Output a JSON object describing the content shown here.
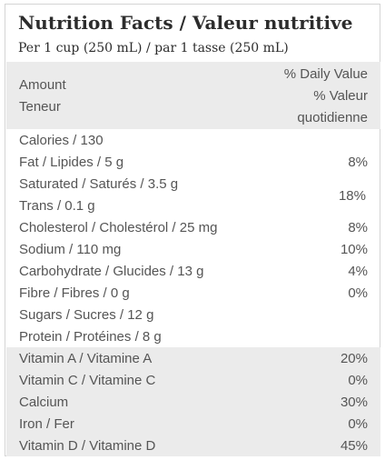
{
  "title": "Nutrition Facts / Valeur nutritive",
  "serving": "Per 1 cup (250 mL) / par 1 tasse (250 mL)",
  "header": {
    "amount": "Amount",
    "teneur": "Teneur",
    "dv_line1": "% Daily Value",
    "dv_line2": "% Valeur",
    "dv_line3": "quotidienne"
  },
  "nutrients": [
    {
      "label": "Calories / 130",
      "value": ""
    },
    {
      "label": "Fat / Lipides / 5 g",
      "value": "8%"
    },
    {
      "label": "Saturated / Saturés / 3.5 g",
      "value": ""
    },
    {
      "label": "Trans / 0.1 g",
      "value": ""
    },
    {
      "label": "Cholesterol / Cholestérol / 25 mg",
      "value": "8%"
    },
    {
      "label": "Sodium / 110 mg",
      "value": "10%"
    },
    {
      "label": "Carbohydrate / Glucides / 13 g",
      "value": "4%"
    },
    {
      "label": "Fibre / Fibres / 0 g",
      "value": "0%"
    },
    {
      "label": "Sugars / Sucres / 12 g",
      "value": ""
    },
    {
      "label": "Protein / Protéines / 8 g",
      "value": ""
    }
  ],
  "sat_trans_value": "18%",
  "vitamins": [
    {
      "label": "Vitamin A / Vitamine A",
      "value": "20%"
    },
    {
      "label": "Vitamin C / Vitamine C",
      "value": "0%"
    },
    {
      "label": "Calcium",
      "value": "30%"
    },
    {
      "label": "Iron / Fer",
      "value": "0%"
    },
    {
      "label": "Vitamin D / Vitamine D",
      "value": "45%"
    }
  ]
}
